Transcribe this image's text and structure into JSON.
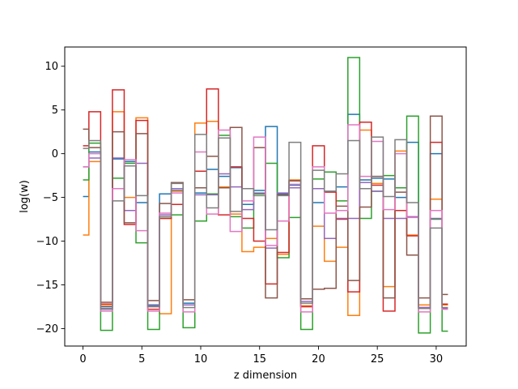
{
  "chart_data": {
    "type": "line",
    "drawstyle": "steps-mid",
    "xlabel": "z dimension",
    "ylabel": "log(w)",
    "xlim": [
      -1.55,
      32.55
    ],
    "ylim": [
      -22.0,
      12.2
    ],
    "xticks": [
      0,
      5,
      10,
      15,
      20,
      25,
      30
    ],
    "yticks": [
      -20,
      -15,
      -10,
      -5,
      0,
      5,
      10
    ],
    "grid": false,
    "legend": "none",
    "colors": [
      "#1f77b4",
      "#ff7f0e",
      "#2ca02c",
      "#d62728",
      "#9467bd",
      "#8c564b",
      "#e377c2",
      "#7f7f7f"
    ],
    "x": [
      0,
      1,
      2,
      3,
      4,
      5,
      6,
      7,
      8,
      9,
      10,
      11,
      12,
      13,
      14,
      15,
      16,
      17,
      18,
      19,
      20,
      21,
      22,
      23,
      24,
      25,
      26,
      27,
      28,
      29,
      30,
      31
    ],
    "series": [
      {
        "values": [
          -4.9,
          0.2,
          -17.5,
          -0.6,
          -0.9,
          -5.6,
          -17.3,
          -4.6,
          -4.2,
          -17.1,
          -4.5,
          -1.8,
          -2.6,
          -1.6,
          -5.8,
          -4.2,
          3.1,
          -4.6,
          -3.6,
          -17.4,
          -5.6,
          -4.3,
          -3.8,
          4.5,
          -3.0,
          -2.8,
          -2.9,
          -5.0,
          1.3,
          -17.3,
          0.0,
          -17.3
        ]
      },
      {
        "values": [
          -9.3,
          -0.9,
          -17.4,
          4.8,
          -5.0,
          4.1,
          -17.4,
          -18.3,
          -4.3,
          -17.3,
          3.5,
          3.7,
          -3.8,
          -6.9,
          -11.2,
          -10.7,
          -9.7,
          -11.5,
          -3.0,
          -17.4,
          -8.3,
          -12.3,
          -10.7,
          -18.5,
          2.7,
          -3.4,
          -15.2,
          0.3,
          -9.3,
          -17.3,
          -5.2,
          -17.3
        ]
      },
      {
        "values": [
          -3.0,
          1.2,
          -20.2,
          -2.8,
          -1.1,
          -10.2,
          -20.1,
          -7.4,
          -7.0,
          -19.9,
          -7.7,
          -4.6,
          2.1,
          -7.2,
          -8.5,
          -4.6,
          -1.1,
          -11.9,
          -7.3,
          -20.1,
          -2.9,
          -2.1,
          -5.4,
          11.0,
          -7.4,
          -4.3,
          -2.5,
          -3.9,
          4.3,
          -20.5,
          -7.5,
          -20.3
        ]
      },
      {
        "values": [
          0.9,
          4.8,
          -17.2,
          7.3,
          -8.1,
          3.8,
          -17.8,
          -7.4,
          -5.8,
          -17.3,
          -2.0,
          7.4,
          -7.0,
          -1.5,
          -7.4,
          -10.0,
          -14.9,
          -11.3,
          -3.1,
          -17.5,
          0.9,
          -4.4,
          -7.5,
          -15.8,
          3.6,
          -3.6,
          -18.0,
          -6.5,
          -9.4,
          -17.6,
          1.3,
          -17.2
        ]
      },
      {
        "values": [
          -1.5,
          -0.5,
          -17.7,
          -0.5,
          -6.5,
          -1.1,
          -17.4,
          -7.0,
          -4.0,
          -17.3,
          -4.7,
          -4.7,
          -2.3,
          -3.8,
          -6.4,
          -4.5,
          -10.8,
          -4.5,
          -3.9,
          -16.9,
          -4.0,
          -9.7,
          -7.4,
          -7.4,
          -3.3,
          -4.3,
          -7.4,
          -7.4,
          -7.2,
          -17.6,
          -7.4,
          -17.7
        ]
      },
      {
        "values": [
          2.8,
          0.7,
          -17.0,
          2.5,
          -7.9,
          2.3,
          -16.8,
          -5.7,
          -3.3,
          -16.7,
          -3.9,
          -0.3,
          -3.9,
          3.0,
          -4.0,
          0.7,
          -16.5,
          -4.7,
          -3.1,
          -16.6,
          -15.5,
          -15.4,
          -6.0,
          -14.5,
          -6.1,
          -2.6,
          -16.5,
          -4.4,
          -11.6,
          -16.5,
          4.3,
          -16.1
        ]
      },
      {
        "values": [
          -1.5,
          0.0,
          -18.0,
          -4.0,
          -0.7,
          -8.8,
          -18.0,
          -6.8,
          -4.5,
          -18.1,
          0.2,
          -6.9,
          2.7,
          -8.9,
          -5.4,
          1.9,
          -10.5,
          -7.7,
          -3.5,
          -18.1,
          -1.5,
          -6.8,
          -6.5,
          3.3,
          -2.6,
          1.4,
          -6.4,
          0.0,
          -7.3,
          -18.1,
          -6.5,
          -17.8
        ]
      },
      {
        "values": [
          0.6,
          1.5,
          -17.8,
          -5.4,
          -1.4,
          -4.8,
          -17.5,
          -7.2,
          -3.4,
          -17.6,
          2.2,
          -6.2,
          1.8,
          -6.6,
          -4.0,
          -4.8,
          -8.7,
          -4.8,
          1.3,
          -17.1,
          -1.9,
          -4.3,
          -2.3,
          1.5,
          -4.0,
          1.9,
          -4.9,
          1.6,
          -5.6,
          -17.7,
          -8.5,
          -17.6
        ]
      }
    ]
  }
}
